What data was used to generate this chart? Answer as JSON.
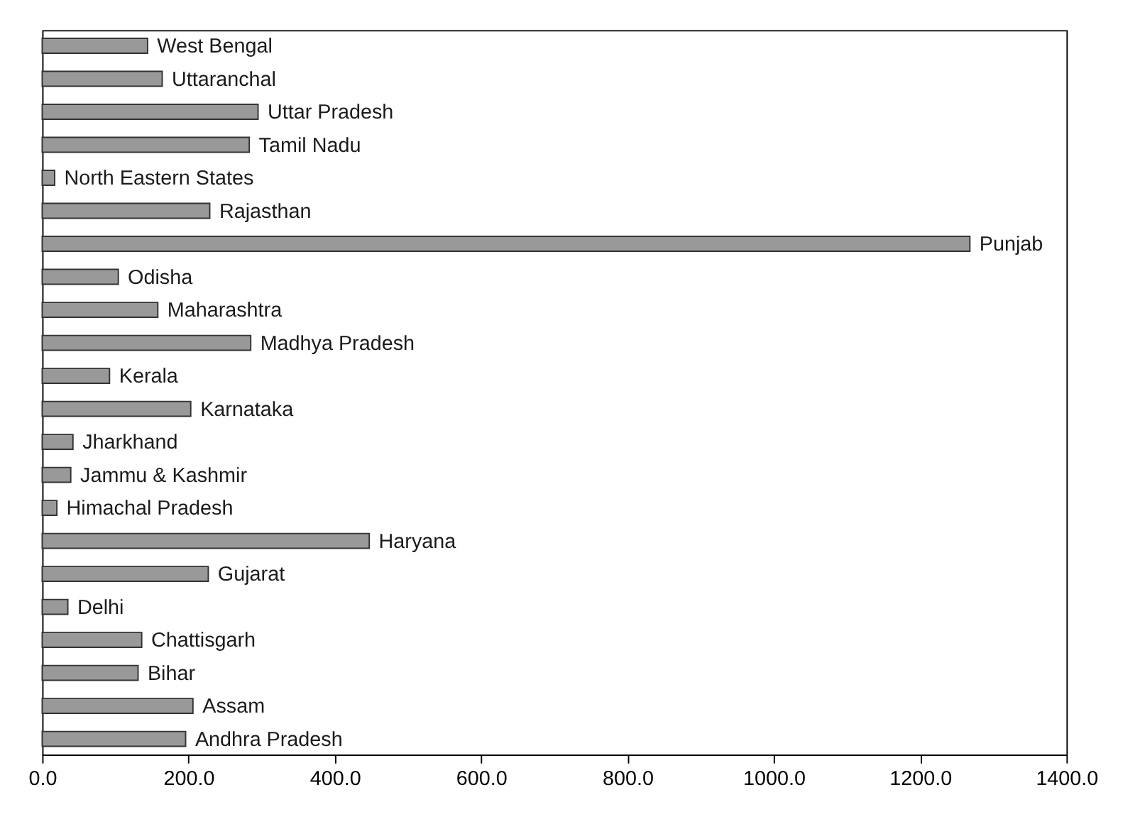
{
  "chart_data": {
    "type": "bar",
    "orientation": "horizontal",
    "categories": [
      "West Bengal",
      "Uttaranchal",
      "Uttar Pradesh",
      "Tamil Nadu",
      "North Eastern States",
      "Rajasthan",
      "Punjab",
      "Odisha",
      "Maharashtra",
      "Madhya Pradesh",
      "Kerala",
      "Karnataka",
      "Jharkhand",
      "Jammu & Kashmir",
      "Himachal Pradesh",
      "Haryana",
      "Gujarat",
      "Delhi",
      "Chattisgarh",
      "Bihar",
      "Assam",
      "Andhra Pradesh"
    ],
    "values": [
      144,
      164,
      295,
      283,
      17,
      229,
      1268,
      104,
      158,
      285,
      92,
      203,
      42,
      39,
      20,
      447,
      227,
      35,
      136,
      131,
      206,
      196
    ],
    "color": "#999999",
    "xlim": [
      0,
      1400
    ],
    "xticks": [
      {
        "value": 0,
        "label": "0.0"
      },
      {
        "value": 200,
        "label": "200.0"
      },
      {
        "value": 400,
        "label": "400.0"
      },
      {
        "value": 600,
        "label": "600.0"
      },
      {
        "value": 800,
        "label": "800.0"
      },
      {
        "value": 1000,
        "label": "1000.0"
      },
      {
        "value": 1200,
        "label": "1200.0"
      },
      {
        "value": 1400,
        "label": "1400.0"
      }
    ],
    "tick_labels": "x",
    "grid": false
  }
}
